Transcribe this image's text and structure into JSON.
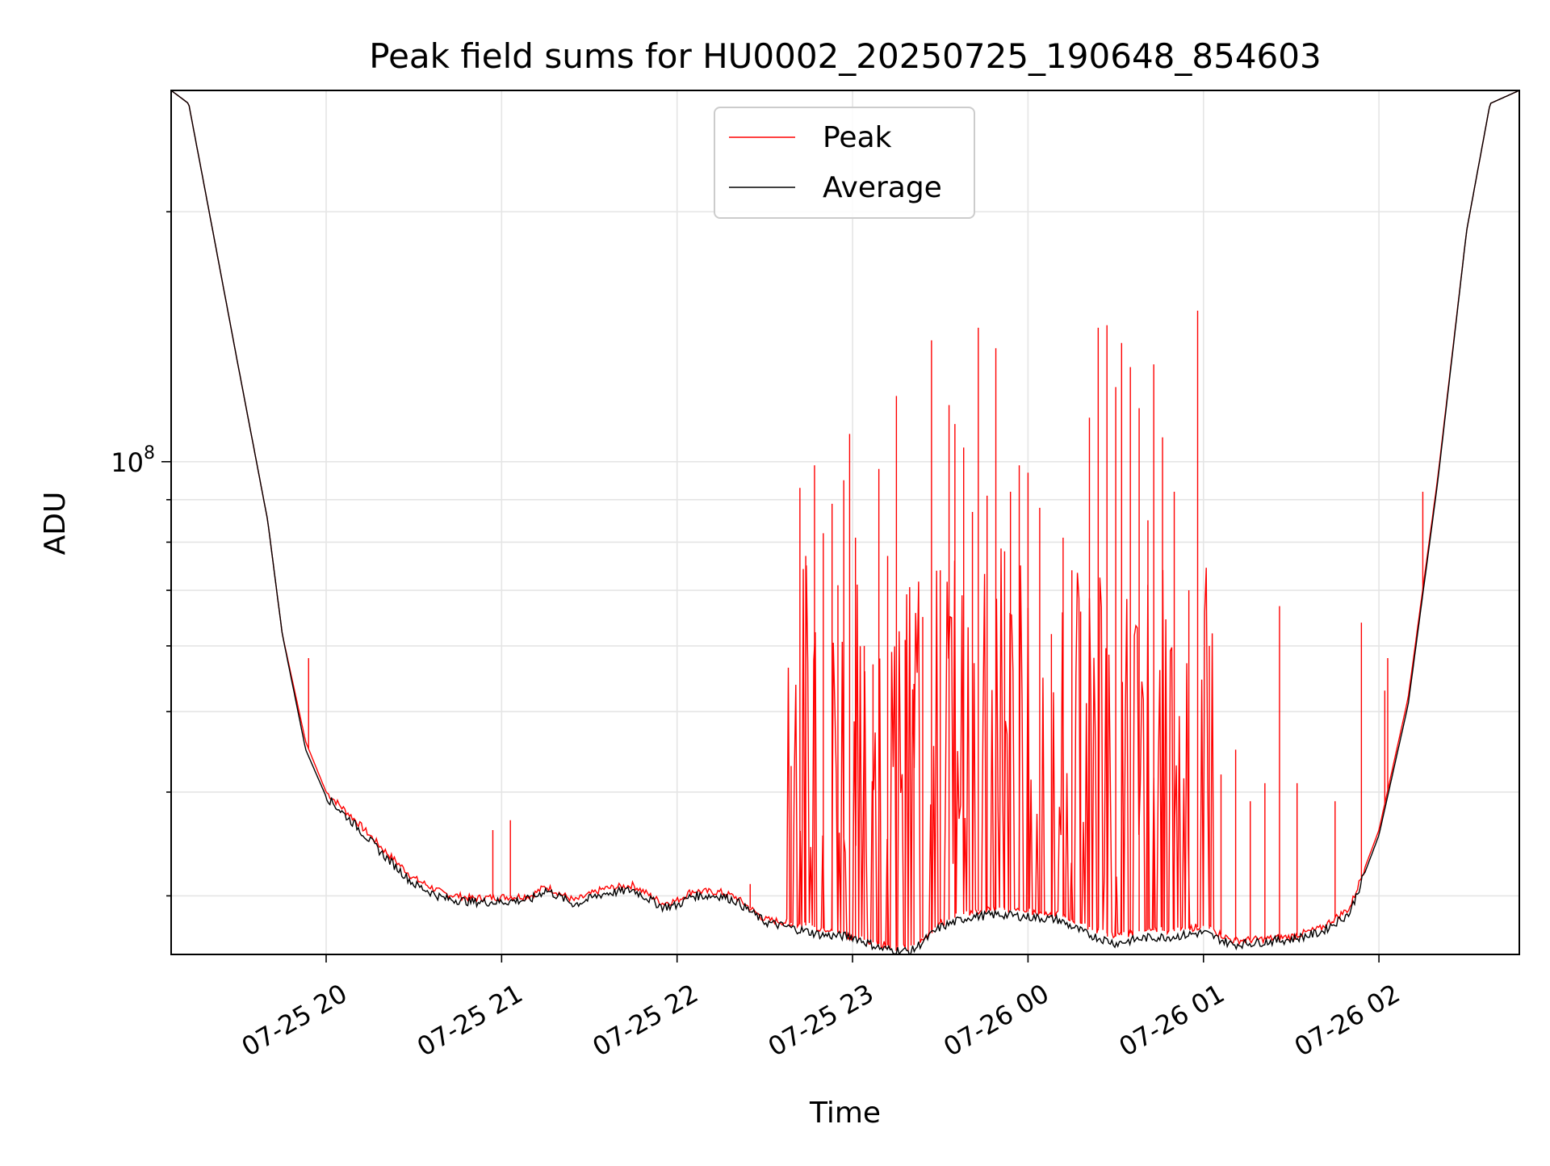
{
  "chart_data": {
    "type": "line",
    "title": "Peak field sums for HU0002_20250725_190648_854603",
    "xlabel": "Time",
    "ylabel": "ADU",
    "x_scale": "time",
    "y_scale": "log",
    "xlim": [
      "2025-07-25T19:07",
      "2025-07-26T02:48"
    ],
    "ylim": [
      25500000,
      280000000
    ],
    "x_ticks": [
      {
        "t": "2025-07-25T20:00",
        "label": "07-25 20"
      },
      {
        "t": "2025-07-25T21:00",
        "label": "07-25 21"
      },
      {
        "t": "2025-07-25T22:00",
        "label": "07-25 22"
      },
      {
        "t": "2025-07-25T23:00",
        "label": "07-25 23"
      },
      {
        "t": "2025-07-26T00:00",
        "label": "07-26 00"
      },
      {
        "t": "2025-07-26T01:00",
        "label": "07-26 01"
      },
      {
        "t": "2025-07-26T02:00",
        "label": "07-26 02"
      }
    ],
    "y_major_ticks": [
      {
        "value": 100000000,
        "label_base": "10",
        "label_exp": "8"
      }
    ],
    "y_minor_ticks": [
      30000000,
      40000000,
      50000000,
      60000000,
      70000000,
      80000000,
      90000000,
      200000000
    ],
    "grid": true,
    "legend_position": "top-center",
    "series": [
      {
        "name": "Peak",
        "color": "#ff0000",
        "points": [
          [
            "2025-07-25T19:07",
            280000000
          ],
          [
            "2025-07-25T19:13",
            270000000
          ],
          [
            "2025-07-25T19:20",
            200000000
          ],
          [
            "2025-07-25T19:30",
            130000000
          ],
          [
            "2025-07-25T19:40",
            85000000
          ],
          [
            "2025-07-25T19:45",
            62000000
          ],
          [
            "2025-07-25T19:53",
            46000000
          ],
          [
            "2025-07-25T20:00",
            40000000
          ],
          [
            "2025-07-25T20:10",
            37000000
          ],
          [
            "2025-07-25T20:20",
            34000000
          ],
          [
            "2025-07-25T20:30",
            31500000
          ],
          [
            "2025-07-25T20:40",
            30200000
          ],
          [
            "2025-07-25T20:50",
            29800000
          ],
          [
            "2025-07-25T21:00",
            29900000
          ],
          [
            "2025-07-25T21:10",
            30000000
          ],
          [
            "2025-07-25T21:15",
            30800000
          ],
          [
            "2025-07-25T21:25",
            29600000
          ],
          [
            "2025-07-25T21:35",
            30600000
          ],
          [
            "2025-07-25T21:45",
            30900000
          ],
          [
            "2025-07-25T21:55",
            29400000
          ],
          [
            "2025-07-25T22:00",
            29600000
          ],
          [
            "2025-07-25T22:05",
            30400000
          ],
          [
            "2025-07-25T22:15",
            30300000
          ],
          [
            "2025-07-25T22:20",
            29900000
          ],
          [
            "2025-07-25T22:30",
            28100000
          ],
          [
            "2025-07-25T22:40",
            27800000
          ],
          [
            "2025-07-25T22:50",
            27400000
          ],
          [
            "2025-07-25T23:00",
            26800000
          ],
          [
            "2025-07-25T23:10",
            26200000
          ],
          [
            "2025-07-25T23:20",
            26000000
          ],
          [
            "2025-07-25T23:30",
            27800000
          ],
          [
            "2025-07-25T23:40",
            28700000
          ],
          [
            "2025-07-25T23:50",
            28900000
          ],
          [
            "2025-07-26T00:00",
            28700000
          ],
          [
            "2025-07-26T00:10",
            28500000
          ],
          [
            "2025-07-26T00:20",
            27600000
          ],
          [
            "2025-07-26T00:30",
            26800000
          ],
          [
            "2025-07-26T00:40",
            27300000
          ],
          [
            "2025-07-26T00:50",
            27200000
          ],
          [
            "2025-07-26T01:00",
            27600000
          ],
          [
            "2025-07-26T01:10",
            26500000
          ],
          [
            "2025-07-26T01:20",
            26600000
          ],
          [
            "2025-07-26T01:30",
            26800000
          ],
          [
            "2025-07-26T01:40",
            27400000
          ],
          [
            "2025-07-26T01:50",
            29000000
          ],
          [
            "2025-07-26T02:00",
            36000000
          ],
          [
            "2025-07-26T02:10",
            52000000
          ],
          [
            "2025-07-26T02:20",
            95000000
          ],
          [
            "2025-07-26T02:30",
            190000000
          ],
          [
            "2025-07-26T02:38",
            270000000
          ],
          [
            "2025-07-26T02:48",
            280000000
          ]
        ],
        "spikes": [
          [
            "2025-07-25T19:54",
            58000000
          ],
          [
            "2025-07-25T20:57",
            36000000
          ],
          [
            "2025-07-25T21:03",
            37000000
          ],
          [
            "2025-07-25T22:25",
            31000000
          ],
          [
            "2025-07-25T22:39",
            43000000
          ],
          [
            "2025-07-25T22:42",
            93000000
          ],
          [
            "2025-07-25T22:44",
            77000000
          ],
          [
            "2025-07-25T22:47",
            99000000
          ],
          [
            "2025-07-25T22:50",
            82000000
          ],
          [
            "2025-07-25T22:53",
            89000000
          ],
          [
            "2025-07-25T22:55",
            71000000
          ],
          [
            "2025-07-25T22:57",
            95000000
          ],
          [
            "2025-07-25T22:59",
            108000000
          ],
          [
            "2025-07-25T23:01",
            81000000
          ],
          [
            "2025-07-25T23:04",
            60000000
          ],
          [
            "2025-07-25T23:07",
            57000000
          ],
          [
            "2025-07-25T23:09",
            98000000
          ],
          [
            "2025-07-25T23:12",
            77000000
          ],
          [
            "2025-07-25T23:15",
            120000000
          ],
          [
            "2025-07-25T23:18",
            61000000
          ],
          [
            "2025-07-25T23:21",
            54000000
          ],
          [
            "2025-07-25T23:24",
            65000000
          ],
          [
            "2025-07-25T23:27",
            140000000
          ],
          [
            "2025-07-25T23:30",
            74000000
          ],
          [
            "2025-07-25T23:33",
            117000000
          ],
          [
            "2025-07-25T23:35",
            111000000
          ],
          [
            "2025-07-25T23:38",
            104000000
          ],
          [
            "2025-07-25T23:41",
            87000000
          ],
          [
            "2025-07-25T23:43",
            145000000
          ],
          [
            "2025-07-25T23:46",
            91000000
          ],
          [
            "2025-07-25T23:49",
            137000000
          ],
          [
            "2025-07-25T23:52",
            78000000
          ],
          [
            "2025-07-25T23:54",
            92000000
          ],
          [
            "2025-07-25T23:57",
            99000000
          ],
          [
            "2025-07-26T00:00",
            97000000
          ],
          [
            "2025-07-26T00:04",
            88000000
          ],
          [
            "2025-07-26T00:08",
            62000000
          ],
          [
            "2025-07-26T00:12",
            81000000
          ],
          [
            "2025-07-26T00:15",
            74000000
          ],
          [
            "2025-07-26T00:18",
            66000000
          ],
          [
            "2025-07-26T00:21",
            113000000
          ],
          [
            "2025-07-26T00:24",
            145000000
          ],
          [
            "2025-07-26T00:27",
            146000000
          ],
          [
            "2025-07-26T00:30",
            123000000
          ],
          [
            "2025-07-26T00:32",
            139000000
          ],
          [
            "2025-07-26T00:35",
            130000000
          ],
          [
            "2025-07-26T00:38",
            116000000
          ],
          [
            "2025-07-26T00:41",
            85000000
          ],
          [
            "2025-07-26T00:43",
            131000000
          ],
          [
            "2025-07-26T00:46",
            107000000
          ],
          [
            "2025-07-26T00:50",
            92000000
          ],
          [
            "2025-07-26T00:55",
            70000000
          ],
          [
            "2025-07-26T00:58",
            152000000
          ],
          [
            "2025-07-26T01:02",
            60000000
          ],
          [
            "2025-07-26T01:06",
            42000000
          ],
          [
            "2025-07-26T01:11",
            45000000
          ],
          [
            "2025-07-26T01:16",
            39000000
          ],
          [
            "2025-07-26T01:21",
            41000000
          ],
          [
            "2025-07-26T01:26",
            67000000
          ],
          [
            "2025-07-26T01:32",
            41000000
          ],
          [
            "2025-07-26T01:45",
            39000000
          ],
          [
            "2025-07-26T01:54",
            64000000
          ],
          [
            "2025-07-26T02:02",
            53000000
          ],
          [
            "2025-07-26T02:03",
            58000000
          ],
          [
            "2025-07-26T02:15",
            92000000
          ]
        ]
      },
      {
        "name": "Average",
        "color": "#000000",
        "points": [
          [
            "2025-07-25T19:07",
            280000000
          ],
          [
            "2025-07-25T19:13",
            270000000
          ],
          [
            "2025-07-25T19:20",
            200000000
          ],
          [
            "2025-07-25T19:30",
            130000000
          ],
          [
            "2025-07-25T19:40",
            85000000
          ],
          [
            "2025-07-25T19:45",
            62000000
          ],
          [
            "2025-07-25T19:53",
            45000000
          ],
          [
            "2025-07-25T20:00",
            39500000
          ],
          [
            "2025-07-25T20:10",
            36500000
          ],
          [
            "2025-07-25T20:20",
            33500000
          ],
          [
            "2025-07-25T20:30",
            31000000
          ],
          [
            "2025-07-25T20:40",
            29800000
          ],
          [
            "2025-07-25T20:50",
            29500000
          ],
          [
            "2025-07-25T21:00",
            29500000
          ],
          [
            "2025-07-25T21:10",
            29700000
          ],
          [
            "2025-07-25T21:15",
            30500000
          ],
          [
            "2025-07-25T21:25",
            29300000
          ],
          [
            "2025-07-25T21:35",
            30200000
          ],
          [
            "2025-07-25T21:45",
            30500000
          ],
          [
            "2025-07-25T21:55",
            29100000
          ],
          [
            "2025-07-25T22:00",
            29200000
          ],
          [
            "2025-07-25T22:05",
            30000000
          ],
          [
            "2025-07-25T22:15",
            30000000
          ],
          [
            "2025-07-25T22:20",
            29600000
          ],
          [
            "2025-07-25T22:30",
            27900000
          ],
          [
            "2025-07-25T22:40",
            27400000
          ],
          [
            "2025-07-25T22:50",
            26900000
          ],
          [
            "2025-07-25T23:00",
            26800000
          ],
          [
            "2025-07-25T23:10",
            25900000
          ],
          [
            "2025-07-25T23:20",
            25700000
          ],
          [
            "2025-07-25T23:30",
            27500000
          ],
          [
            "2025-07-25T23:40",
            28300000
          ],
          [
            "2025-07-25T23:50",
            28500000
          ],
          [
            "2025-07-26T00:00",
            28300000
          ],
          [
            "2025-07-26T00:10",
            28100000
          ],
          [
            "2025-07-26T00:20",
            27000000
          ],
          [
            "2025-07-26T00:30",
            26300000
          ],
          [
            "2025-07-26T00:40",
            26700000
          ],
          [
            "2025-07-26T00:50",
            26800000
          ],
          [
            "2025-07-26T01:00",
            27100000
          ],
          [
            "2025-07-26T01:10",
            26200000
          ],
          [
            "2025-07-26T01:20",
            26400000
          ],
          [
            "2025-07-26T01:30",
            26600000
          ],
          [
            "2025-07-26T01:40",
            27100000
          ],
          [
            "2025-07-26T01:50",
            28600000
          ],
          [
            "2025-07-26T02:00",
            35500000
          ],
          [
            "2025-07-26T02:10",
            51000000
          ],
          [
            "2025-07-26T02:20",
            94000000
          ],
          [
            "2025-07-26T02:30",
            190000000
          ],
          [
            "2025-07-26T02:38",
            270000000
          ],
          [
            "2025-07-26T02:48",
            280000000
          ]
        ]
      }
    ]
  }
}
